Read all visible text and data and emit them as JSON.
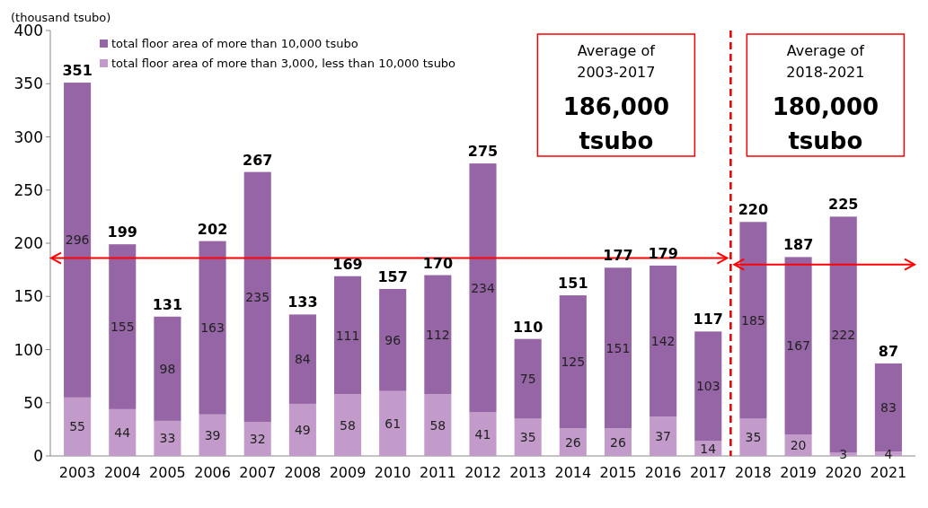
{
  "chart_data": {
    "type": "bar",
    "stacked": true,
    "ylabel": "(thousand tsubo)",
    "categories": [
      "2003",
      "2004",
      "2005",
      "2006",
      "2007",
      "2008",
      "2009",
      "2010",
      "2011",
      "2012",
      "2013",
      "2014",
      "2015",
      "2016",
      "2017",
      "2018",
      "2019",
      "2020",
      "2021"
    ],
    "series": [
      {
        "name": "total floor area of more than 3,000, less than 10,000 tsubo",
        "color": "#c39bcb",
        "values": [
          55,
          44,
          33,
          39,
          32,
          49,
          58,
          61,
          58,
          41,
          35,
          26,
          26,
          37,
          14,
          35,
          20,
          3,
          4
        ]
      },
      {
        "name": "total floor area of more than 10,000 tsubo",
        "color": "#9665a5",
        "values": [
          296,
          155,
          98,
          163,
          235,
          84,
          111,
          96,
          112,
          234,
          75,
          125,
          151,
          142,
          103,
          185,
          167,
          222,
          83
        ]
      }
    ],
    "totals": [
      "351",
      "199",
      "131",
      "202",
      "267",
      "133",
      "169",
      "157",
      "170",
      "275",
      "110",
      "151",
      "177",
      "179",
      "117",
      "220",
      "187",
      "225",
      "87"
    ],
    "data_labels": true,
    "ylim": [
      0,
      400
    ],
    "yticks": [
      0,
      50,
      100,
      150,
      200,
      250,
      300,
      350,
      400
    ],
    "legend": "top left",
    "ref_lines": [
      {
        "axis": "x",
        "value": "2018",
        "color": "#e00000",
        "line_style": "dashed"
      },
      {
        "axis": "y",
        "value": 186,
        "color": "#ff0000"
      },
      {
        "axis": "y",
        "value": 180,
        "color": "#ff0000"
      }
    ],
    "annotations": [
      "Average of\n2003-2017\n186,000\ntsubo",
      "Average of\n2018-2021\n180,000\ntsubo"
    ]
  }
}
